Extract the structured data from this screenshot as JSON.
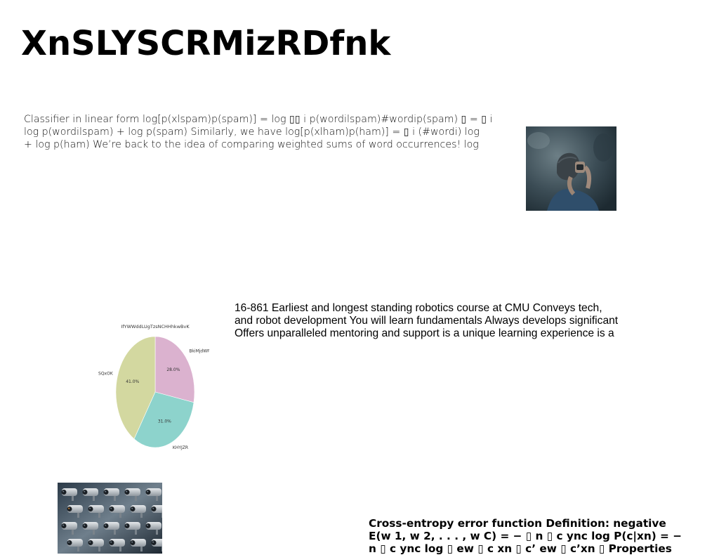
{
  "page": {
    "title": "XnSLYSCRMizRDfnk",
    "block1_lines": [
      "Classifier in linear form log[p(xlspam)p(spam)] = log ▯▯ i p(wordilspam)#wordip(spam) ▯ = ▯ i",
      "log p(wordilspam) + log p(spam) Similarly, we have log[p(xlham)p(ham)] = ▯ i (#wordi) log",
      "+ log p(ham) We’re back to the idea of comparing weighted sums of word occurrences! log"
    ],
    "block2_lines": [
      "16-861 Earliest and longest standing robotics course at CMU Conveys tech,",
      "and robot development You will learn fundamentals Always develops significant",
      "Offers unparalleled mentoring and support is a unique learning experience is a"
    ],
    "block3_lines": [
      "Cross-entropy error function Definition: negative",
      "E(w 1, w 2, . . . , w C) = − ▯ n ▯ c ync log P(c|xn) = −",
      "n ▯ c ync log ▯ ew ▯ c xn ▯ c’ ew ▯ c’xn ▯ Properties"
    ]
  },
  "chart_data": {
    "type": "pie",
    "title": "IfYWWddLUgTzsNCHHhkwBvK",
    "slices": [
      {
        "label": "BkiMjdWF",
        "value": 28.0,
        "value_label": "28.0%",
        "color": "#dbb2cf"
      },
      {
        "label": "KHYJZR",
        "value": 31.0,
        "value_label": "31.0%",
        "color": "#8dd3cc"
      },
      {
        "label": "SQxOK",
        "value": 41.0,
        "value_label": "41.0%",
        "color": "#d3d8a0"
      }
    ],
    "start_angle_deg": 90,
    "direction": "clockwise"
  },
  "images": {
    "photo1": "person-with-camera-photo",
    "photo2": "security-cameras-photo"
  }
}
